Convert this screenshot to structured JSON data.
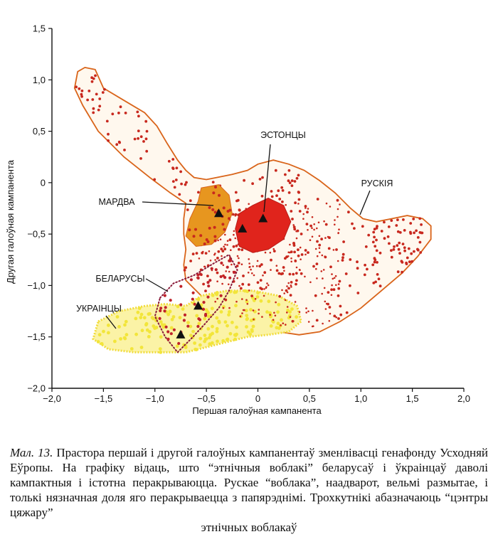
{
  "chart_data": {
    "type": "scatter",
    "title": "",
    "xlabel": "Першая галоўная кампанента",
    "ylabel": "Другая галоўная кампанента",
    "xlim": [
      -2.0,
      2.0
    ],
    "ylim": [
      -2.0,
      1.5
    ],
    "xticks": [
      "−2,0",
      "−1,5",
      "−1,0",
      "−0,5",
      "0",
      "0,5",
      "1,0",
      "1,5",
      "2,0"
    ],
    "xtick_values": [
      -2.0,
      -1.5,
      -1.0,
      -0.5,
      0,
      0.5,
      1.0,
      1.5,
      2.0
    ],
    "yticks": [
      "1,5",
      "1,0",
      "0,5",
      "0",
      "−0,5",
      "−1,0",
      "−1,5",
      "−2,0"
    ],
    "ytick_values": [
      1.5,
      1.0,
      0.5,
      0,
      -0.5,
      -1.0,
      -1.5,
      -2.0
    ],
    "grid": false,
    "colors": {
      "russia": "#c8281e",
      "russia_outline": "#d9641a",
      "estonians": "#e0241c",
      "mordva": "#e7961f",
      "belarus": "#c0232a",
      "belarus_outline": "#8a1a3a",
      "ukraine": "#f2e53a",
      "centroid": "#111111"
    },
    "series": [
      {
        "name": "РУСКІЯ",
        "role": "outline",
        "centroid": [
          -0.15,
          -0.45
        ],
        "outline": [
          [
            -1.68,
            1.12
          ],
          [
            -1.58,
            1.1
          ],
          [
            -1.5,
            0.92
          ],
          [
            -1.3,
            0.8
          ],
          [
            -1.1,
            0.68
          ],
          [
            -0.98,
            0.55
          ],
          [
            -0.88,
            0.38
          ],
          [
            -0.78,
            0.22
          ],
          [
            -0.7,
            0.12
          ],
          [
            -0.62,
            0.05
          ],
          [
            -0.5,
            0.03
          ],
          [
            -0.4,
            0.05
          ],
          [
            -0.25,
            0.08
          ],
          [
            -0.1,
            0.12
          ],
          [
            0.0,
            0.18
          ],
          [
            0.15,
            0.22
          ],
          [
            0.3,
            0.18
          ],
          [
            0.45,
            0.12
          ],
          [
            0.6,
            0.02
          ],
          [
            0.75,
            -0.1
          ],
          [
            0.9,
            -0.25
          ],
          [
            1.02,
            -0.35
          ],
          [
            1.15,
            -0.38
          ],
          [
            1.3,
            -0.35
          ],
          [
            1.45,
            -0.32
          ],
          [
            1.6,
            -0.35
          ],
          [
            1.68,
            -0.42
          ],
          [
            1.68,
            -0.55
          ],
          [
            1.55,
            -0.72
          ],
          [
            1.4,
            -0.88
          ],
          [
            1.2,
            -1.05
          ],
          [
            1.0,
            -1.22
          ],
          [
            0.8,
            -1.35
          ],
          [
            0.6,
            -1.45
          ],
          [
            0.4,
            -1.48
          ],
          [
            0.2,
            -1.45
          ],
          [
            0.0,
            -1.38
          ],
          [
            -0.2,
            -1.3
          ],
          [
            -0.4,
            -1.2
          ],
          [
            -0.55,
            -1.1
          ],
          [
            -0.7,
            -0.95
          ],
          [
            -0.72,
            -0.8
          ],
          [
            -0.7,
            -0.65
          ],
          [
            -0.72,
            -0.5
          ],
          [
            -0.72,
            -0.35
          ],
          [
            -0.7,
            -0.2
          ],
          [
            -0.85,
            -0.1
          ],
          [
            -1.05,
            0.05
          ],
          [
            -1.3,
            0.25
          ],
          [
            -1.55,
            0.5
          ],
          [
            -1.7,
            0.75
          ],
          [
            -1.78,
            0.92
          ],
          [
            -1.75,
            1.08
          ]
        ],
        "blobs": [
          {
            "x": [
              -1.8,
              -0.6
            ],
            "y": [
              0.0,
              1.05
            ],
            "n": 130,
            "density": "sparse"
          },
          {
            "x": [
              -0.85,
              0.4
            ],
            "y": [
              -1.15,
              0.15
            ],
            "n": 150,
            "density": "sparse"
          },
          {
            "x": [
              0.2,
              1.6
            ],
            "y": [
              -1.35,
              0.1
            ],
            "n": 170,
            "density": "sparse"
          },
          {
            "x": [
              -0.6,
              0.8
            ],
            "y": [
              -1.4,
              -0.2
            ],
            "n": 260,
            "density": "regular"
          },
          {
            "x": [
              1.1,
              1.6
            ],
            "y": [
              -0.8,
              -0.3
            ],
            "n": 60,
            "density": "dense"
          }
        ]
      },
      {
        "name": "ЭСТОНЦЫ",
        "role": "cloud",
        "centroid": [
          0.05,
          -0.35
        ],
        "outline": [
          [
            -0.18,
            -0.3
          ],
          [
            -0.05,
            -0.22
          ],
          [
            0.1,
            -0.15
          ],
          [
            0.25,
            -0.22
          ],
          [
            0.32,
            -0.38
          ],
          [
            0.25,
            -0.55
          ],
          [
            0.1,
            -0.65
          ],
          [
            -0.05,
            -0.68
          ],
          [
            -0.18,
            -0.62
          ],
          [
            -0.22,
            -0.45
          ]
        ]
      },
      {
        "name": "МАРДВА",
        "role": "cloud",
        "centroid": [
          -0.38,
          -0.3
        ],
        "outline": [
          [
            -0.55,
            -0.05
          ],
          [
            -0.38,
            -0.02
          ],
          [
            -0.28,
            -0.12
          ],
          [
            -0.25,
            -0.3
          ],
          [
            -0.32,
            -0.48
          ],
          [
            -0.45,
            -0.6
          ],
          [
            -0.6,
            -0.62
          ],
          [
            -0.7,
            -0.52
          ],
          [
            -0.66,
            -0.35
          ],
          [
            -0.58,
            -0.18
          ]
        ]
      },
      {
        "name": "БЕЛАРУСЫ",
        "role": "cloud",
        "centroid": [
          -0.58,
          -1.2
        ],
        "outline": [
          [
            -0.95,
            -1.12
          ],
          [
            -0.82,
            -0.98
          ],
          [
            -0.62,
            -0.9
          ],
          [
            -0.42,
            -0.78
          ],
          [
            -0.28,
            -0.7
          ],
          [
            -0.2,
            -0.85
          ],
          [
            -0.28,
            -1.05
          ],
          [
            -0.38,
            -1.22
          ],
          [
            -0.52,
            -1.38
          ],
          [
            -0.65,
            -1.52
          ],
          [
            -0.78,
            -1.65
          ],
          [
            -0.9,
            -1.5
          ],
          [
            -1.0,
            -1.3
          ]
        ]
      },
      {
        "name": "УКРАІНЦЫ",
        "role": "cloud",
        "centroid": [
          -0.75,
          -1.48
        ],
        "outline": [
          [
            -1.55,
            -1.35
          ],
          [
            -1.35,
            -1.25
          ],
          [
            -1.1,
            -1.2
          ],
          [
            -0.9,
            -1.18
          ],
          [
            -0.7,
            -1.2
          ],
          [
            -0.55,
            -1.1
          ],
          [
            -0.3,
            -1.05
          ],
          [
            -0.05,
            -1.05
          ],
          [
            0.2,
            -1.1
          ],
          [
            0.38,
            -1.2
          ],
          [
            0.42,
            -1.35
          ],
          [
            0.3,
            -1.45
          ],
          [
            0.1,
            -1.48
          ],
          [
            -0.1,
            -1.5
          ],
          [
            -0.3,
            -1.55
          ],
          [
            -0.5,
            -1.6
          ],
          [
            -0.7,
            -1.65
          ],
          [
            -0.95,
            -1.65
          ],
          [
            -1.2,
            -1.65
          ],
          [
            -1.45,
            -1.62
          ],
          [
            -1.6,
            -1.52
          ]
        ]
      }
    ],
    "annotations": [
      {
        "text": "ЭСТОНЦЫ",
        "series": "ЭСТОНЦЫ"
      },
      {
        "text": "РУСКІЯ",
        "series": "РУСКІЯ"
      },
      {
        "text": "МАРДВА",
        "series": "МАРДВА"
      },
      {
        "text": "БЕЛАРУСЫ",
        "series": "БЕЛАРУСЫ"
      },
      {
        "text": "УКРАІНЦЫ",
        "series": "УКРАІНЦЫ"
      }
    ]
  },
  "caption": {
    "label": "Мал. 13.",
    "text": "Прастора першай і другой галоўных кампанентаў зменлівасці генафонду Усходняй Еўропы. На графіку відаць, што “этнічныя воблакі” беларусаў і ўкраінцаў даволі кампактныя і істотна перакрываюцца. Рускае “воблака”, наадварот, вельмі размытае, і толькі нязначная доля яго перакрываецца з папярэднімі. Трохкутнікі абазначаюць “цэнтры цяжару”",
    "last_line": "этнічных воблакаў"
  }
}
